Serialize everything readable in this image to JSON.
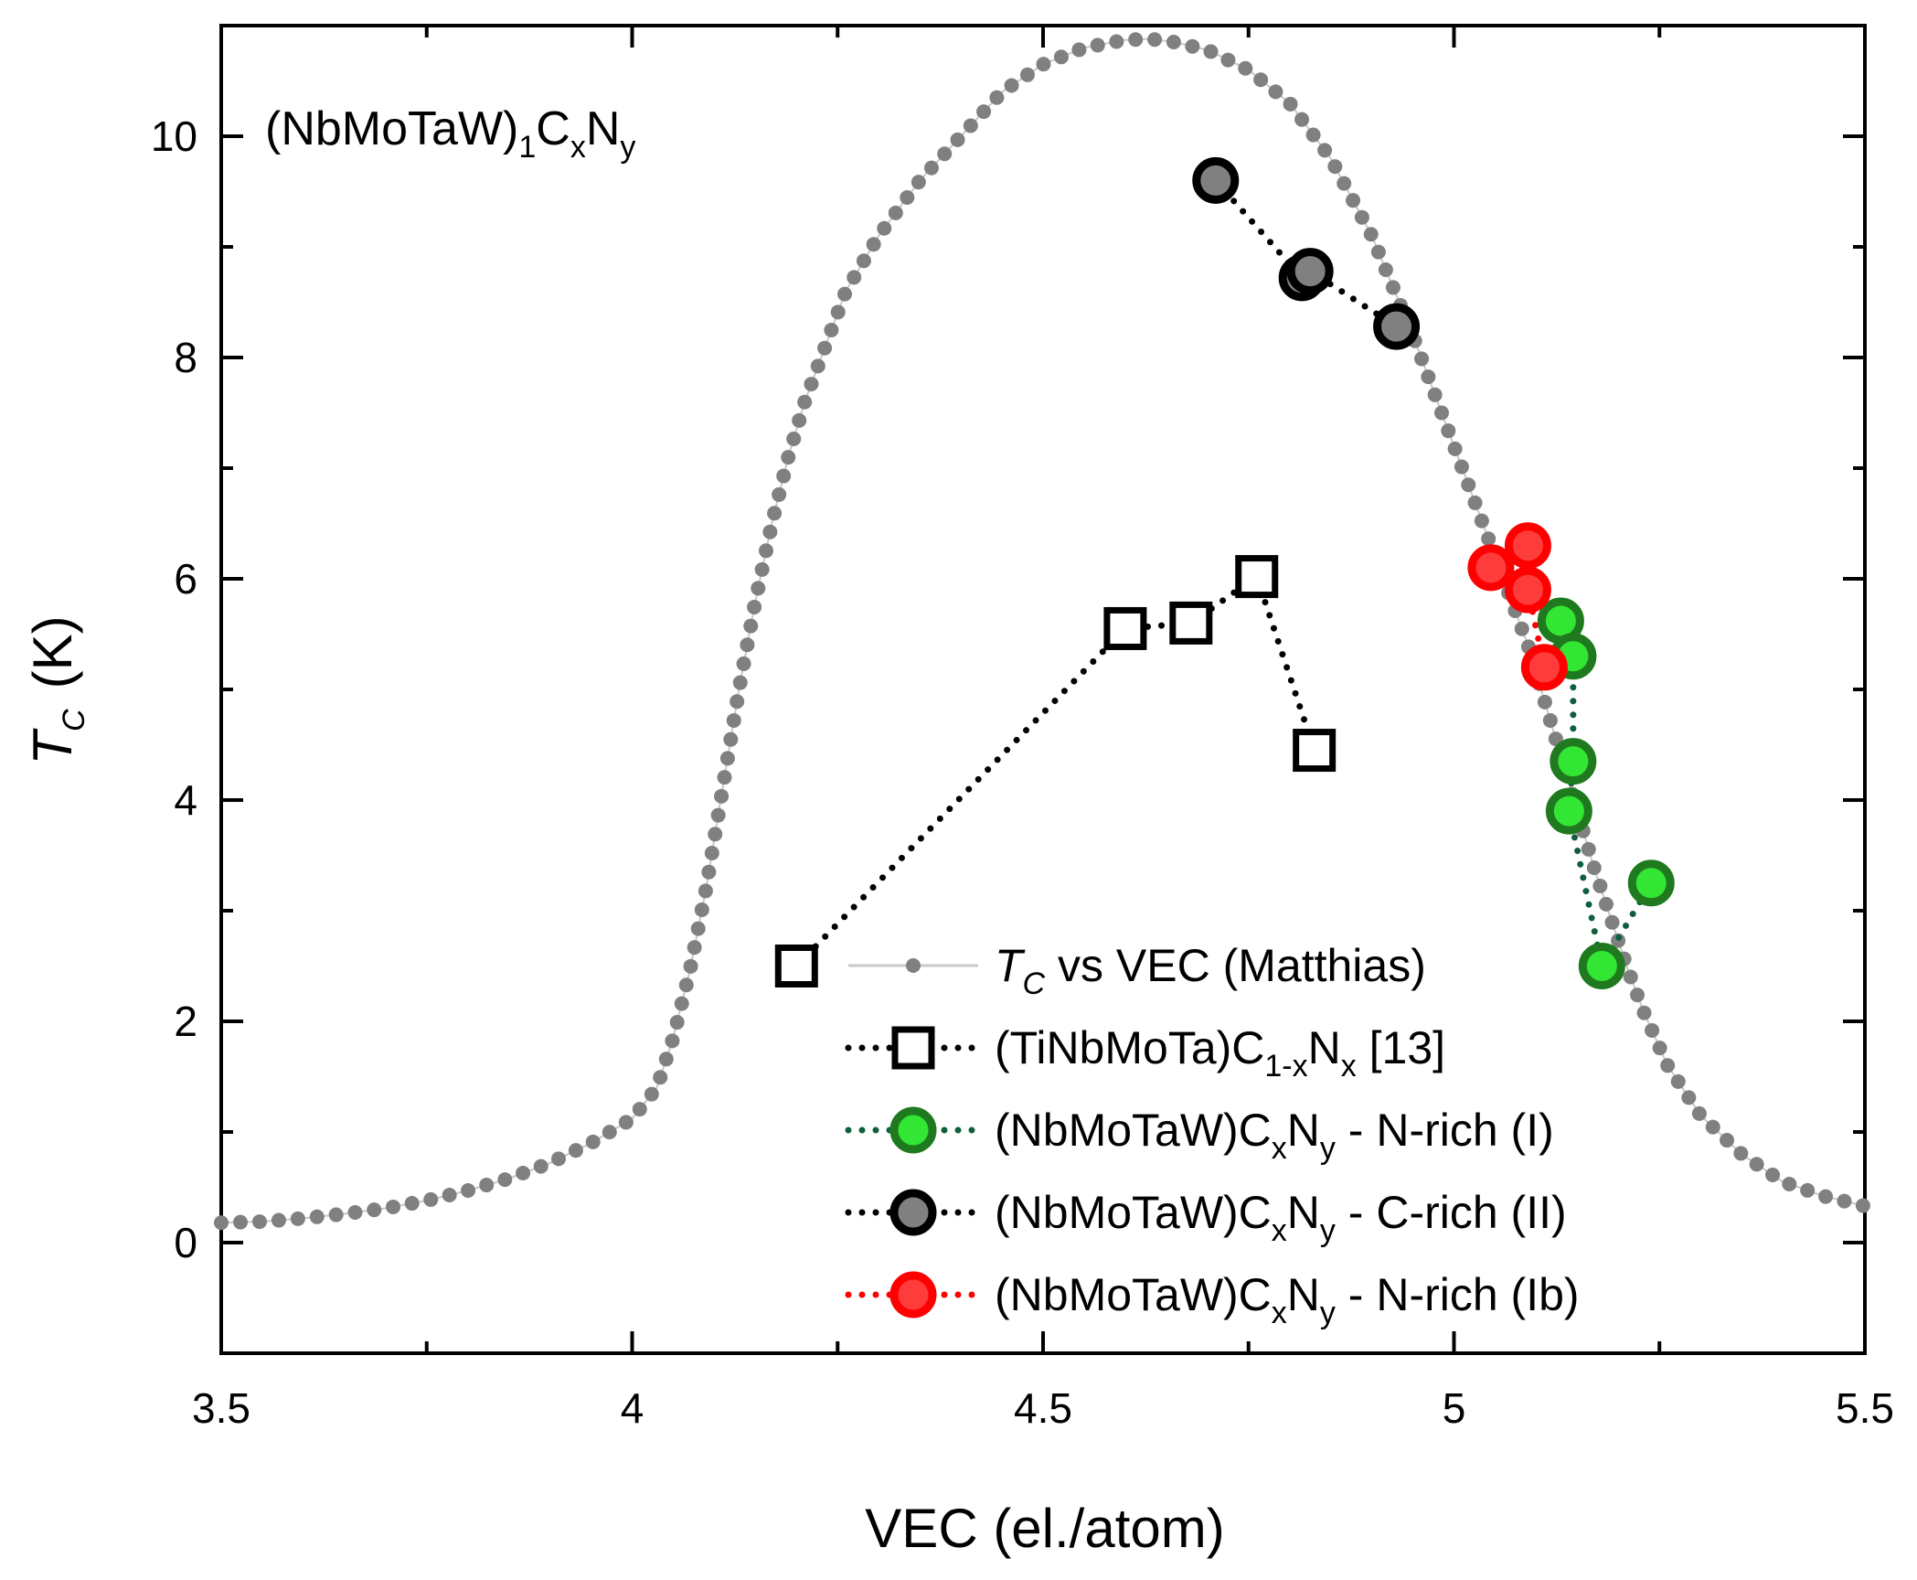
{
  "chart_data": {
    "type": "scatter",
    "title": "(NbMoTaW)1CxNy",
    "title_parts": {
      "base": "(NbMoTaW)",
      "sub1": "1",
      "c": "C",
      "subx": "x",
      "n": "N",
      "suby": "y"
    },
    "xlabel": "VEC (el./atom)",
    "ylabel_parts": {
      "main": "T",
      "sub": "C",
      "unit": "(K)"
    },
    "xlim": [
      3.5,
      5.5
    ],
    "ylim": [
      -1,
      11
    ],
    "x_ticks": [
      3.5,
      4,
      4.5,
      5,
      5.5
    ],
    "x_tick_labels": [
      "3.5",
      "4",
      "4.5",
      "5",
      "5.5"
    ],
    "y_ticks": [
      0,
      2,
      4,
      6,
      8,
      10
    ],
    "y_tick_labels": [
      "0",
      "2",
      "4",
      "6",
      "8",
      "10"
    ],
    "grid": false,
    "legend_position": "bottom-right",
    "series": [
      {
        "name": "TC vs VEC (Matthias)",
        "legend_parts": {
          "main": "T",
          "sub": "C",
          "rest": " vs VEC (Matthias)"
        },
        "marker": "small-dot",
        "color": "#808080",
        "line_color": "#c8c8c8",
        "x": [
          3.5,
          3.55,
          3.6,
          3.65,
          3.7,
          3.75,
          3.8,
          3.85,
          3.9,
          3.95,
          4.0,
          4.03,
          4.05,
          4.07,
          4.09,
          4.11,
          4.13,
          4.15,
          4.17,
          4.19,
          4.21,
          4.23,
          4.26,
          4.3,
          4.35,
          4.4,
          4.45,
          4.5,
          4.55,
          4.6,
          4.63,
          4.66,
          4.7,
          4.75,
          4.8,
          4.85,
          4.9,
          4.95,
          5.0,
          5.03,
          5.06,
          5.09,
          5.11,
          5.13,
          5.15,
          5.17,
          5.19,
          5.21,
          5.23,
          5.26,
          5.3,
          5.35,
          5.4,
          5.45,
          5.5
        ],
        "y": [
          0.18,
          0.19,
          0.22,
          0.26,
          0.31,
          0.38,
          0.47,
          0.58,
          0.72,
          0.9,
          1.12,
          1.4,
          1.85,
          2.45,
          3.2,
          4.1,
          5.0,
          5.8,
          6.5,
          7.1,
          7.6,
          8.0,
          8.6,
          9.1,
          9.6,
          10.0,
          10.4,
          10.65,
          10.8,
          10.87,
          10.88,
          10.85,
          10.78,
          10.6,
          10.3,
          9.8,
          9.1,
          8.2,
          7.2,
          6.6,
          6.0,
          5.4,
          4.9,
          4.4,
          3.9,
          3.4,
          2.95,
          2.5,
          2.1,
          1.6,
          1.15,
          0.8,
          0.55,
          0.42,
          0.33
        ]
      },
      {
        "name": "(TiNbMoTa)C1-xNx [13]",
        "legend_parts": {
          "base": "(TiNbMoTa)C",
          "sub1": "1-x",
          "n": "N",
          "sub2": "x",
          "rest": " [13]"
        },
        "marker": "open-square",
        "color": "#000000",
        "x": [
          4.2,
          4.6,
          4.68,
          4.76,
          4.83
        ],
        "y": [
          2.5,
          5.55,
          5.6,
          6.02,
          4.45
        ]
      },
      {
        "name": "(NbMoTaW)CxNy - N-rich (I)",
        "legend_parts": {
          "base": "(NbMoTaW)C",
          "sub1": "x",
          "n": "N",
          "sub2": "y",
          "rest": " - N-rich (I)"
        },
        "marker": "circle",
        "color": "#33e633",
        "edge_color": "#1f7a1f",
        "line_color": "#0f5f3c",
        "x": [
          5.13,
          5.145,
          5.145,
          5.14,
          5.18,
          5.24
        ],
        "y": [
          5.62,
          5.3,
          4.35,
          3.9,
          2.5,
          3.25
        ]
      },
      {
        "name": "(NbMoTaW)CxNy - C-rich (II)",
        "legend_parts": {
          "base": "(NbMoTaW)C",
          "sub1": "x",
          "n": "N",
          "sub2": "y",
          "rest": " - C-rich (II)"
        },
        "marker": "circle",
        "color": "#808080",
        "edge_color": "#000000",
        "line_color": "#000000",
        "x": [
          4.71,
          4.815,
          4.825,
          4.93
        ],
        "y": [
          9.6,
          8.72,
          8.78,
          8.28
        ]
      },
      {
        "name": "(NbMoTaW)CxNy - N-rich (Ib)",
        "legend_parts": {
          "base": "(NbMoTaW)C",
          "sub1": "x",
          "n": "N",
          "sub2": "y",
          "rest": " - N-rich (Ib)"
        },
        "marker": "circle",
        "color": "#ff3c3c",
        "edge_color": "#ff0000",
        "line_color": "#ff0000",
        "x": [
          5.045,
          5.09,
          5.09,
          5.11
        ],
        "y": [
          6.1,
          6.3,
          5.9,
          5.2
        ]
      }
    ]
  }
}
